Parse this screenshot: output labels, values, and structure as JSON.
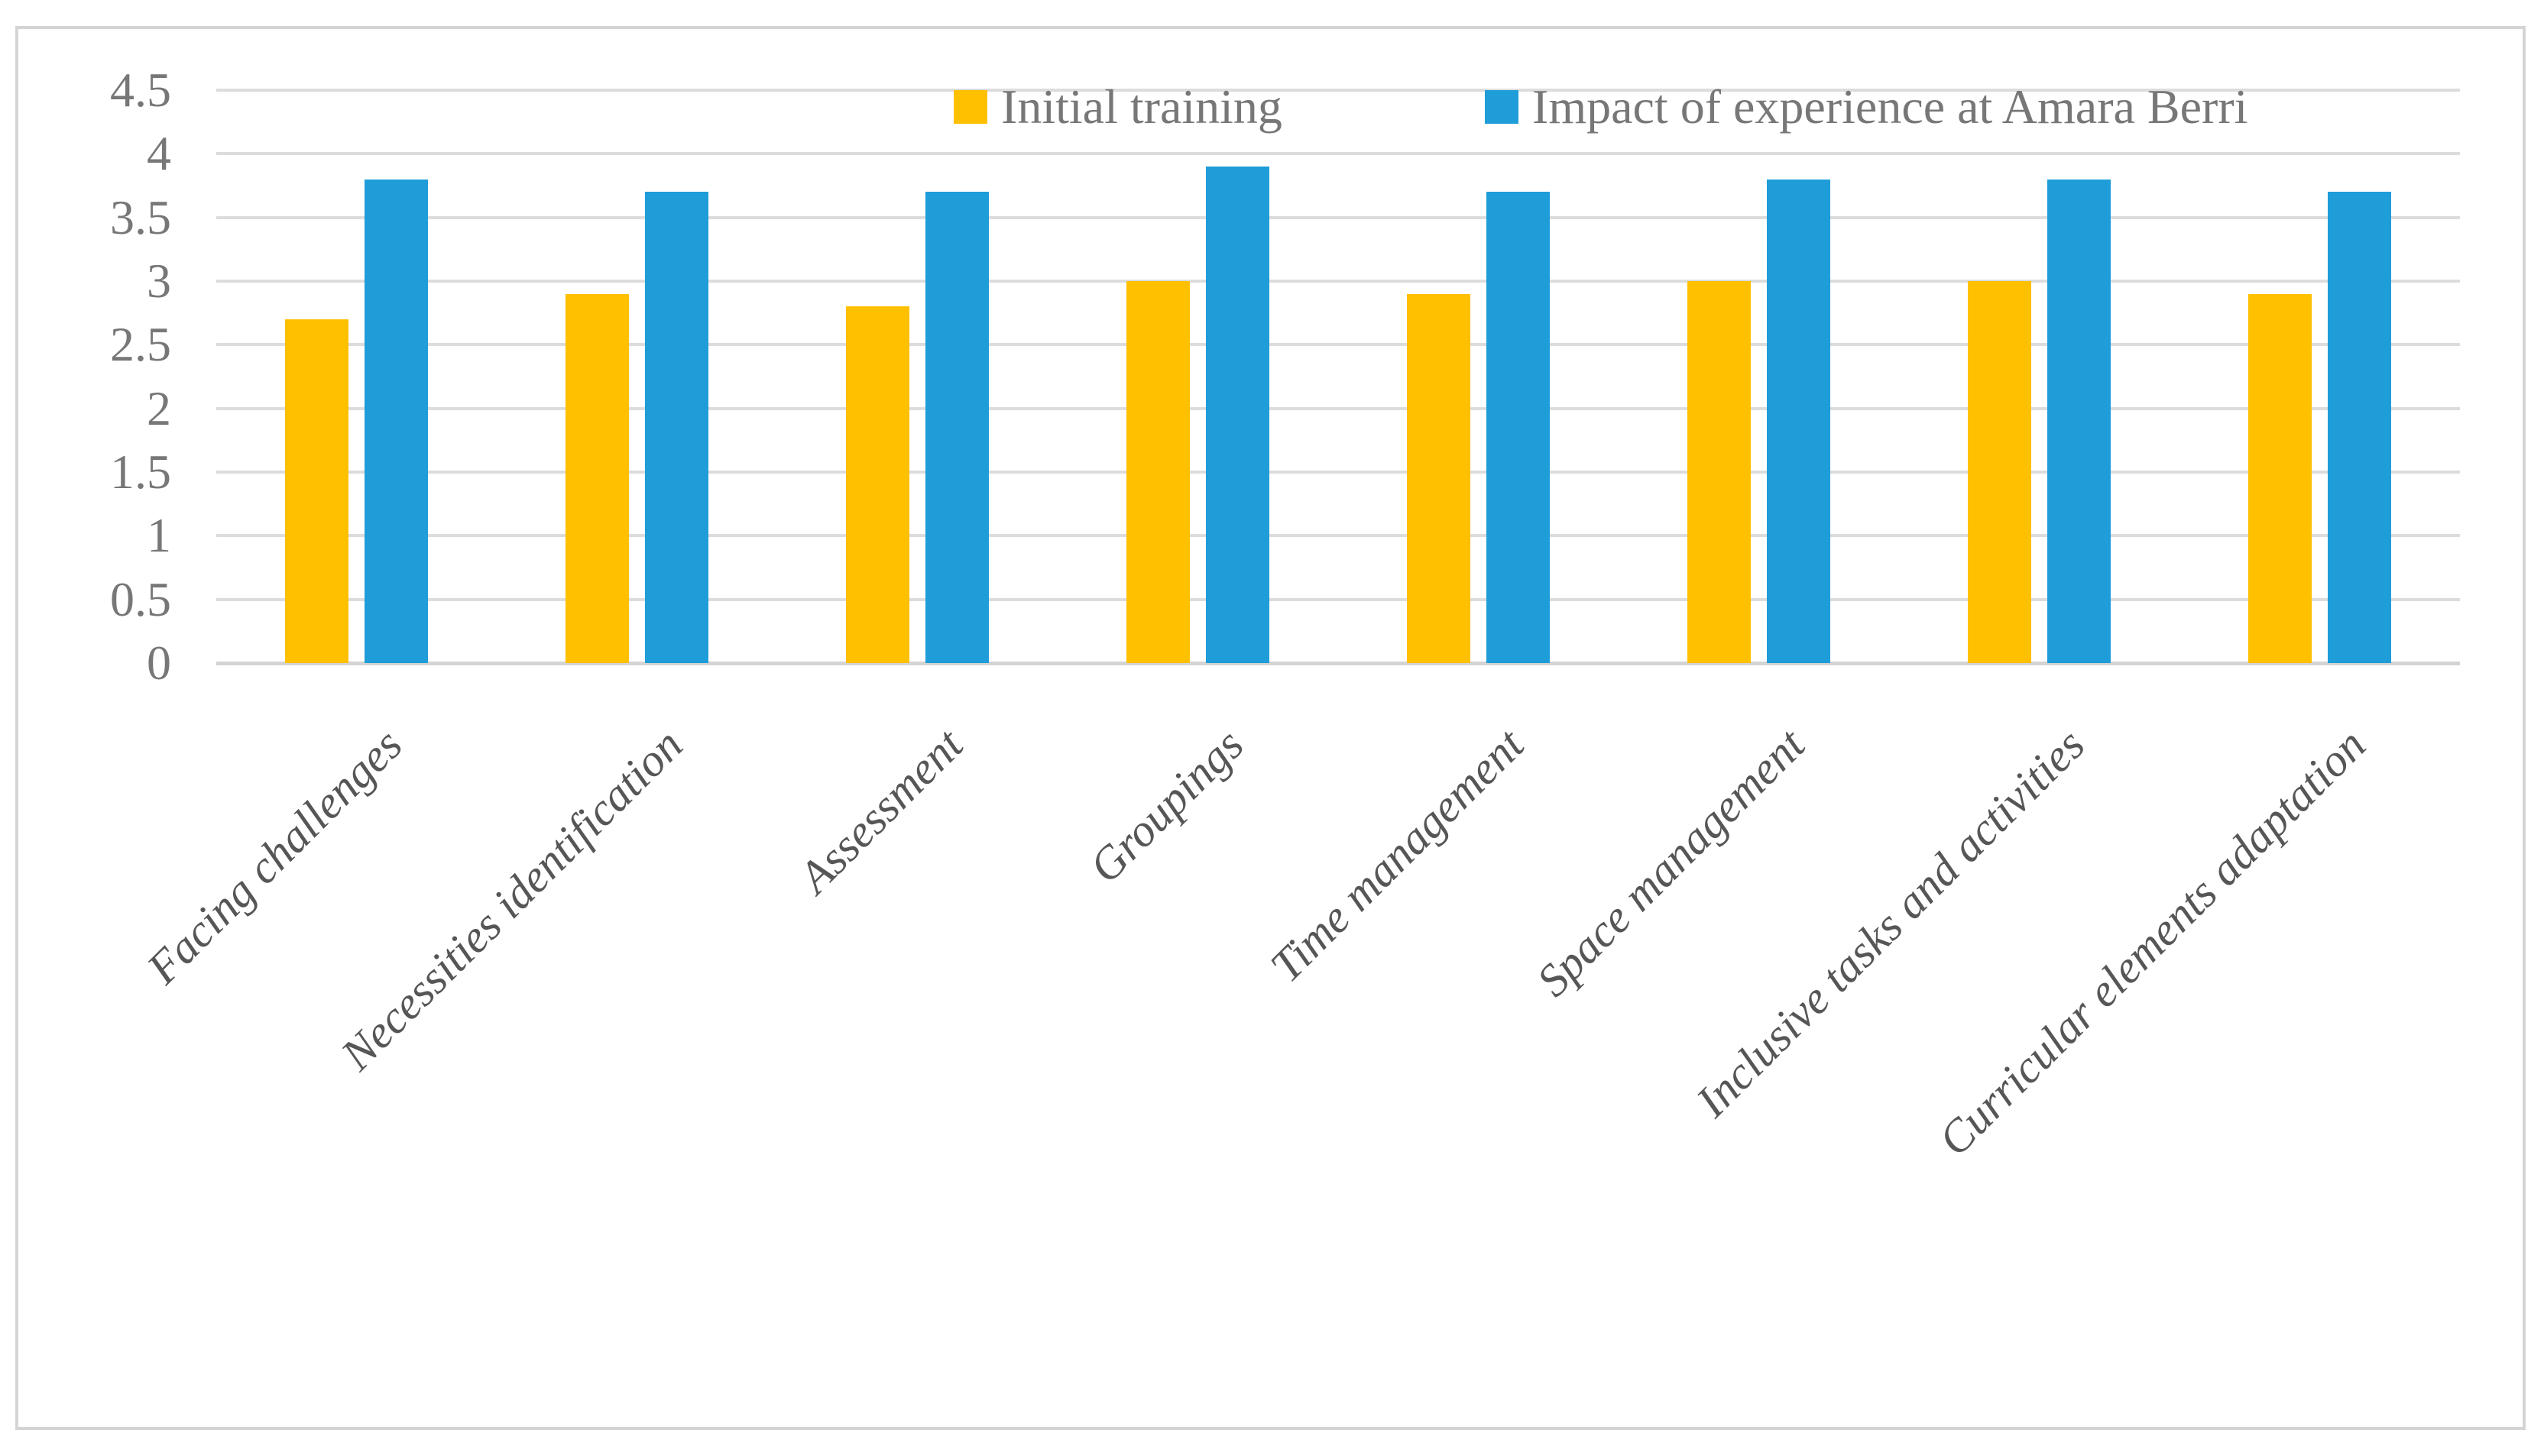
{
  "chart_data": {
    "type": "bar",
    "title": "",
    "xlabel": "",
    "ylabel": "",
    "categories": [
      "Facing challenges",
      "Necessities identification",
      "Assessment",
      "Groupings",
      "Time management",
      "Space management",
      "Inclusive tasks and activities",
      "Curricular elements adaptation"
    ],
    "series": [
      {
        "name": "Initial training",
        "color": "#FFC000",
        "values": [
          2.7,
          2.9,
          2.8,
          3,
          2.9,
          3,
          3,
          2.9
        ]
      },
      {
        "name": "Impact of experience at Amara Berri",
        "color": "#1F9DD9",
        "values": [
          3.8,
          3.7,
          3.7,
          3.9,
          3.7,
          3.8,
          3.8,
          3.7
        ]
      }
    ],
    "ylim": [
      0,
      4.5
    ],
    "yticks": [
      0,
      0.5,
      1,
      1.5,
      2,
      2.5,
      3,
      3.5,
      4,
      4.5
    ],
    "grid": true,
    "legend_position": "top"
  },
  "styles": {
    "background": "#FFFFFF",
    "gridline_color": "#DCDCDC",
    "baseline_color": "#D4D4D4",
    "frame_border_color": "#D4D4D4",
    "axis_text_color": "#777777",
    "category_text_color": "#565656"
  }
}
